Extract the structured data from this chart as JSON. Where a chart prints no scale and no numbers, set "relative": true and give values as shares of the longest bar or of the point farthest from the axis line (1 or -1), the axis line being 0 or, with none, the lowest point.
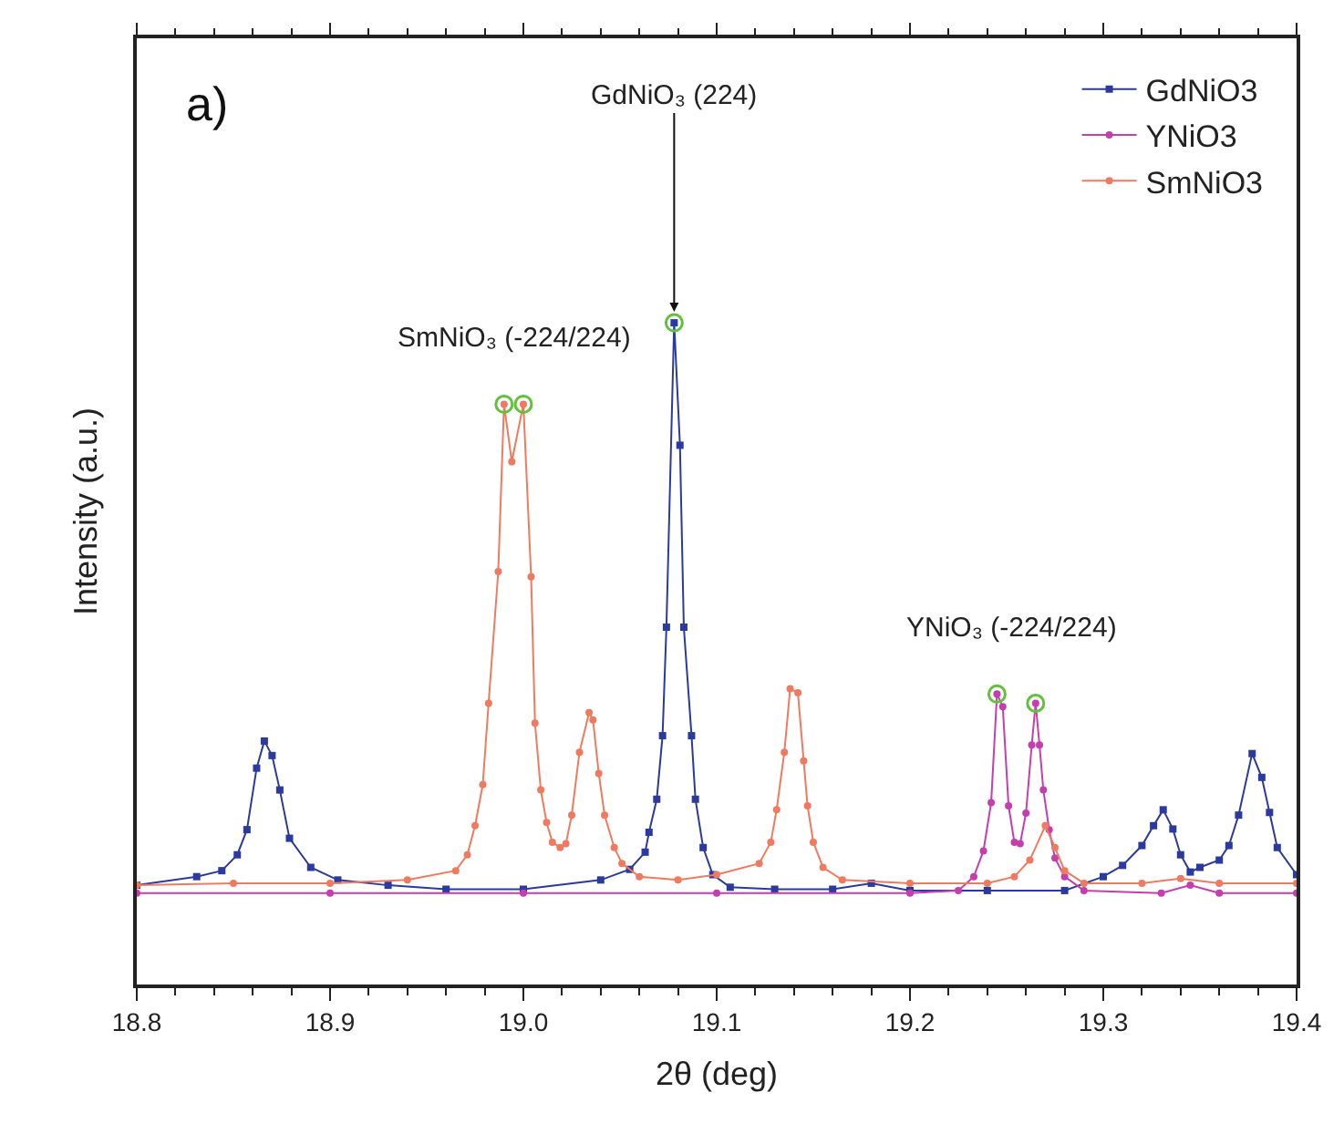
{
  "chart_data": {
    "type": "line",
    "relative": true,
    "xlabel": "2θ (deg)",
    "ylabel": "Intensity (a.u.)",
    "xlim": [
      18.8,
      19.4
    ],
    "xticks": [
      {
        "value": 18.8,
        "label": "18.8"
      },
      {
        "value": 18.9,
        "label": "18.9"
      },
      {
        "value": 19.0,
        "label": "19.0"
      },
      {
        "value": 19.1,
        "label": "19.1"
      },
      {
        "value": 19.2,
        "label": "19.2"
      },
      {
        "value": 19.3,
        "label": "19.3"
      },
      {
        "value": 19.4,
        "label": "19.4"
      }
    ],
    "legend": "top right",
    "annotations": [
      "a)",
      {
        "text": "GdNiO₃ (224)",
        "x": 19.078,
        "y": 1.0
      },
      {
        "text": "SmNiO₃ (-224/224)",
        "x": 18.995,
        "y": 0.877
      },
      {
        "text": "YNiO₃ (-224/224)",
        "x": 19.252,
        "y": 0.439
      }
    ],
    "series": [
      {
        "name": "GdNiO3",
        "color": "#2b3a9e",
        "marker": "square",
        "x": [
          18.8,
          18.831,
          18.844,
          18.852,
          18.857,
          18.862,
          18.866,
          18.87,
          18.874,
          18.879,
          18.89,
          18.904,
          18.93,
          18.96,
          19.0,
          19.04,
          19.055,
          19.063,
          19.065,
          19.069,
          19.072,
          19.074,
          19.078,
          19.081,
          19.083,
          19.087,
          19.089,
          19.093,
          19.098,
          19.107,
          19.13,
          19.16,
          19.18,
          19.2,
          19.24,
          19.28,
          19.3,
          19.31,
          19.32,
          19.326,
          19.331,
          19.336,
          19.34,
          19.345,
          19.35,
          19.36,
          19.365,
          19.37,
          19.377,
          19.382,
          19.386,
          19.39,
          19.4
        ],
        "values": [
          0.15,
          0.163,
          0.172,
          0.196,
          0.234,
          0.327,
          0.368,
          0.346,
          0.294,
          0.221,
          0.177,
          0.158,
          0.15,
          0.144,
          0.144,
          0.158,
          0.174,
          0.2,
          0.23,
          0.28,
          0.376,
          0.54,
          1.0,
          0.815,
          0.54,
          0.376,
          0.28,
          0.207,
          0.166,
          0.147,
          0.144,
          0.144,
          0.153,
          0.142,
          0.142,
          0.142,
          0.163,
          0.18,
          0.21,
          0.24,
          0.264,
          0.235,
          0.196,
          0.17,
          0.177,
          0.188,
          0.21,
          0.256,
          0.349,
          0.313,
          0.26,
          0.207,
          0.166
        ]
      },
      {
        "name": "YNiO3",
        "color": "#c43fae",
        "marker": "circle",
        "x": [
          18.8,
          18.9,
          19.0,
          19.1,
          19.2,
          19.225,
          19.233,
          19.238,
          19.242,
          19.245,
          19.248,
          19.251,
          19.254,
          19.257,
          19.26,
          19.263,
          19.265,
          19.267,
          19.269,
          19.272,
          19.275,
          19.28,
          19.29,
          19.33,
          19.345,
          19.36,
          19.4
        ],
        "values": [
          0.138,
          0.138,
          0.138,
          0.138,
          0.138,
          0.142,
          0.163,
          0.202,
          0.275,
          0.439,
          0.42,
          0.27,
          0.215,
          0.213,
          0.259,
          0.362,
          0.425,
          0.362,
          0.294,
          0.234,
          0.191,
          0.163,
          0.142,
          0.138,
          0.15,
          0.138,
          0.138
        ]
      },
      {
        "name": "SmNiO3",
        "color": "#f07a60",
        "marker": "circle",
        "x": [
          18.8,
          18.85,
          18.9,
          18.94,
          18.965,
          18.971,
          18.975,
          18.979,
          18.982,
          18.987,
          18.99,
          18.994,
          19.0,
          19.004,
          19.006,
          19.009,
          19.012,
          19.015,
          19.019,
          19.022,
          19.025,
          19.029,
          19.034,
          19.036,
          19.039,
          19.042,
          19.047,
          19.051,
          19.06,
          19.08,
          19.1,
          19.122,
          19.128,
          19.131,
          19.135,
          19.138,
          19.142,
          19.145,
          19.147,
          19.15,
          19.155,
          19.165,
          19.2,
          19.24,
          19.254,
          19.262,
          19.27,
          19.275,
          19.28,
          19.29,
          19.32,
          19.34,
          19.36,
          19.4
        ],
        "values": [
          0.15,
          0.153,
          0.153,
          0.158,
          0.172,
          0.196,
          0.24,
          0.302,
          0.425,
          0.624,
          0.877,
          0.79,
          0.877,
          0.616,
          0.395,
          0.294,
          0.245,
          0.215,
          0.207,
          0.213,
          0.256,
          0.351,
          0.411,
          0.4,
          0.319,
          0.256,
          0.207,
          0.183,
          0.163,
          0.158,
          0.166,
          0.183,
          0.215,
          0.264,
          0.351,
          0.447,
          0.441,
          0.338,
          0.27,
          0.215,
          0.177,
          0.158,
          0.153,
          0.153,
          0.163,
          0.188,
          0.24,
          0.207,
          0.172,
          0.153,
          0.153,
          0.16,
          0.153,
          0.153
        ]
      },
      {
        "type": "scatter",
        "color": "#5fc23a",
        "marker": "circle",
        "x": [
          18.99,
          19.0,
          19.078,
          19.245,
          19.265
        ],
        "values": [
          0.877,
          0.877,
          1.0,
          0.439,
          0.425
        ]
      }
    ]
  }
}
